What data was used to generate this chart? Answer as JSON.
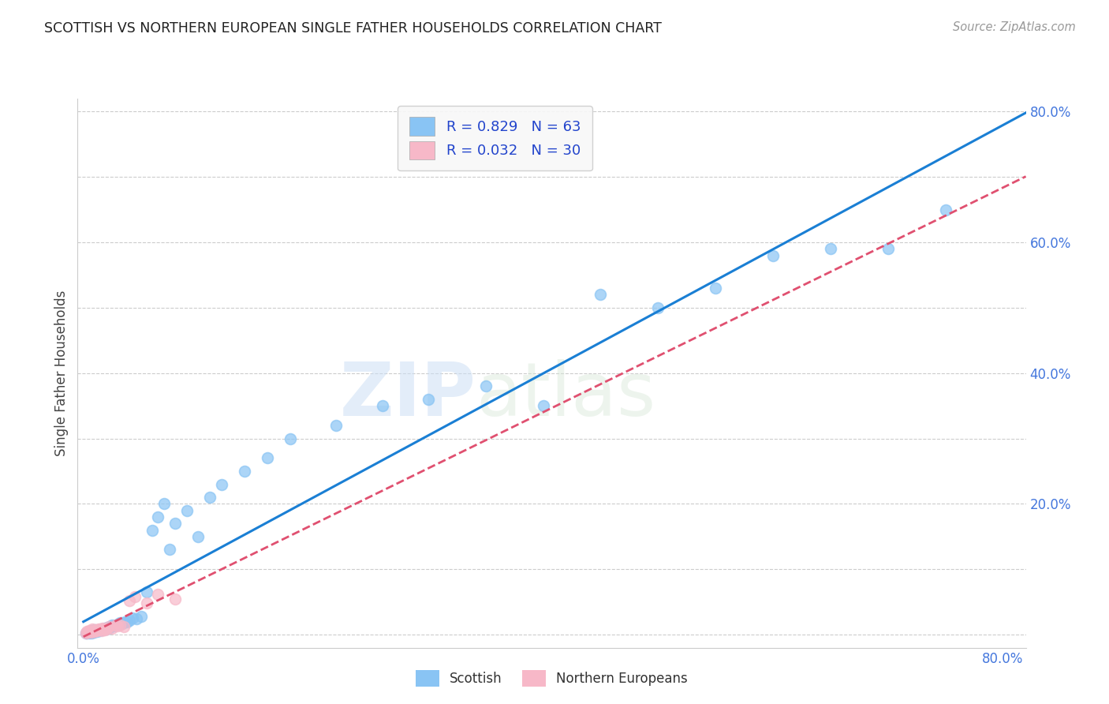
{
  "title": "SCOTTISH VS NORTHERN EUROPEAN SINGLE FATHER HOUSEHOLDS CORRELATION CHART",
  "source": "Source: ZipAtlas.com",
  "ylabel": "Single Father Households",
  "watermark_zip": "ZIP",
  "watermark_atlas": "atlas",
  "background_color": "#ffffff",
  "plot_bg_color": "#ffffff",
  "grid_color": "#cccccc",
  "xlim": [
    -0.005,
    0.82
  ],
  "ylim": [
    -0.02,
    0.82
  ],
  "scottish_color": "#89c4f4",
  "scottish_edge_color": "#89c4f4",
  "northern_european_color": "#f7b8c8",
  "northern_european_edge_color": "#f7b8c8",
  "scottish_line_color": "#1a7fd4",
  "northern_european_line_color": "#e05070",
  "legend_text_color": "#2244cc",
  "tick_label_color": "#4477dd",
  "R_scottish": 0.829,
  "N_scottish": 63,
  "R_northern": 0.032,
  "N_northern": 30,
  "scottish_x": [
    0.002,
    0.003,
    0.004,
    0.005,
    0.005,
    0.006,
    0.007,
    0.007,
    0.008,
    0.008,
    0.009,
    0.01,
    0.01,
    0.011,
    0.012,
    0.013,
    0.014,
    0.015,
    0.016,
    0.017,
    0.018,
    0.019,
    0.02,
    0.021,
    0.022,
    0.023,
    0.025,
    0.027,
    0.028,
    0.03,
    0.032,
    0.034,
    0.036,
    0.038,
    0.04,
    0.043,
    0.046,
    0.05,
    0.055,
    0.06,
    0.065,
    0.07,
    0.075,
    0.08,
    0.09,
    0.1,
    0.11,
    0.12,
    0.14,
    0.16,
    0.18,
    0.22,
    0.26,
    0.3,
    0.35,
    0.4,
    0.45,
    0.5,
    0.55,
    0.6,
    0.65,
    0.7,
    0.75
  ],
  "scottish_y": [
    0.003,
    0.002,
    0.004,
    0.003,
    0.005,
    0.004,
    0.003,
    0.006,
    0.004,
    0.005,
    0.004,
    0.005,
    0.007,
    0.006,
    0.005,
    0.007,
    0.006,
    0.008,
    0.007,
    0.009,
    0.008,
    0.01,
    0.009,
    0.011,
    0.01,
    0.012,
    0.014,
    0.013,
    0.015,
    0.016,
    0.018,
    0.017,
    0.019,
    0.02,
    0.022,
    0.025,
    0.024,
    0.028,
    0.065,
    0.16,
    0.18,
    0.2,
    0.13,
    0.17,
    0.19,
    0.15,
    0.21,
    0.23,
    0.25,
    0.27,
    0.3,
    0.32,
    0.35,
    0.36,
    0.38,
    0.35,
    0.52,
    0.5,
    0.53,
    0.58,
    0.59,
    0.59,
    0.65
  ],
  "northern_x": [
    0.002,
    0.003,
    0.004,
    0.005,
    0.006,
    0.007,
    0.008,
    0.009,
    0.01,
    0.011,
    0.012,
    0.013,
    0.014,
    0.015,
    0.016,
    0.017,
    0.018,
    0.019,
    0.02,
    0.022,
    0.025,
    0.028,
    0.03,
    0.032,
    0.035,
    0.04,
    0.045,
    0.055,
    0.065,
    0.08
  ],
  "northern_y": [
    0.003,
    0.005,
    0.004,
    0.006,
    0.005,
    0.004,
    0.008,
    0.006,
    0.005,
    0.007,
    0.006,
    0.008,
    0.007,
    0.009,
    0.006,
    0.01,
    0.008,
    0.007,
    0.009,
    0.012,
    0.01,
    0.015,
    0.013,
    0.014,
    0.012,
    0.052,
    0.058,
    0.048,
    0.062,
    0.055
  ]
}
